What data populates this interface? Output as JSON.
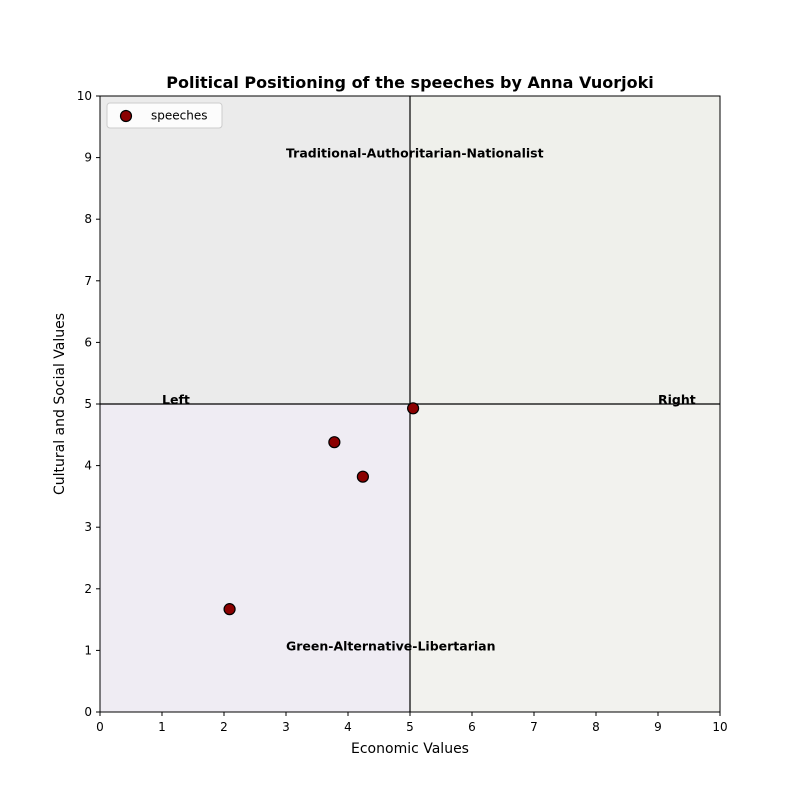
{
  "chart_data": {
    "type": "scatter",
    "title": "Political Positioning of the speeches by Anna Vuorjoki",
    "xlabel": "Economic Values",
    "ylabel": "Cultural and Social Values",
    "xlim": [
      0,
      10
    ],
    "ylim": [
      0,
      10
    ],
    "xticks": [
      "0",
      "1",
      "2",
      "3",
      "4",
      "5",
      "6",
      "7",
      "8",
      "9",
      "10"
    ],
    "yticks": [
      "0",
      "1",
      "2",
      "3",
      "4",
      "5",
      "6",
      "7",
      "8",
      "9",
      "10"
    ],
    "grid": false,
    "legend_position": "top-left",
    "series": [
      {
        "name": "speeches",
        "color": "#8b0000",
        "edge_color": "#000000",
        "points": [
          {
            "x": 5.05,
            "y": 4.93
          },
          {
            "x": 3.78,
            "y": 4.38
          },
          {
            "x": 4.24,
            "y": 3.82
          },
          {
            "x": 2.09,
            "y": 1.67
          }
        ]
      }
    ],
    "divider_lines": {
      "x": 5,
      "y": 5
    },
    "quadrant_colors": {
      "top_left": "#ebebeb",
      "top_right": "#eff0eb",
      "bottom_left": "#efecf3",
      "bottom_right": "#f2f2ee"
    },
    "annotations": [
      {
        "text": "Traditional-Authoritarian-Nationalist",
        "x": 3.0,
        "y": 9.0
      },
      {
        "text": "Green-Alternative-Libertarian",
        "x": 3.0,
        "y": 1.0
      },
      {
        "text": "Left",
        "x": 1.0,
        "y": 5.0
      },
      {
        "text": "Right",
        "x": 9.0,
        "y": 5.0
      }
    ]
  }
}
